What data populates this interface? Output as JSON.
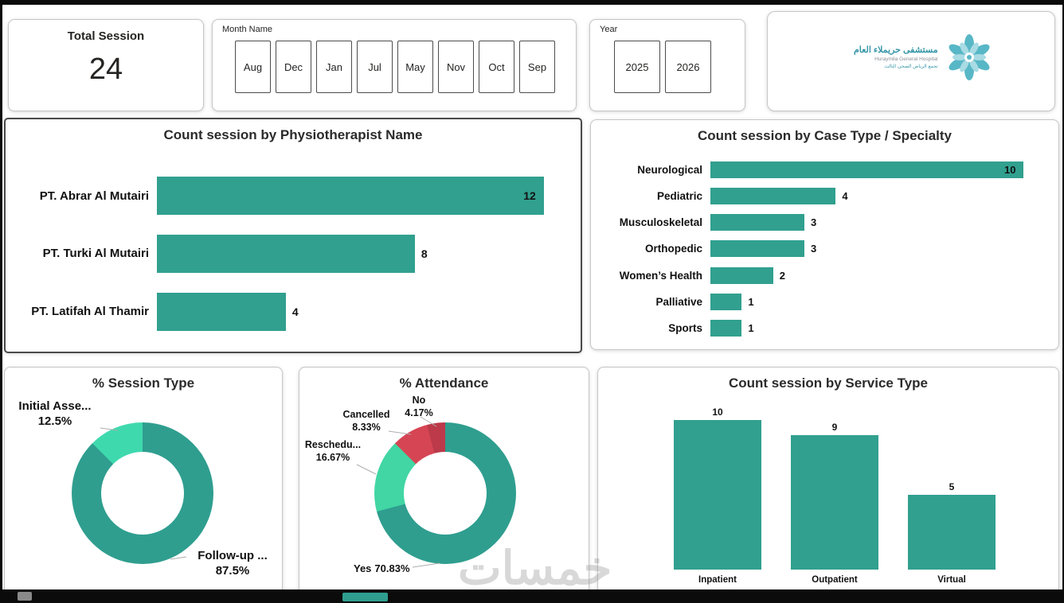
{
  "accent_color": "#31a08f",
  "kpi": {
    "title": "Total Session",
    "value": "24"
  },
  "month_slicer": {
    "label": "Month Name",
    "options": [
      "Aug",
      "Dec",
      "Jan",
      "Jul",
      "May",
      "Nov",
      "Oct",
      "Sep"
    ]
  },
  "year_slicer": {
    "label": "Year",
    "options": [
      "2025",
      "2026"
    ]
  },
  "logo": {
    "name_ar": "مستشفى حريملاء العام",
    "name_en": "Huraymila General Hospital",
    "subtitle_ar": "تجمع الرياض الصحي الثالث"
  },
  "watermark": "خمسات",
  "chart_data": [
    {
      "id": "physio",
      "type": "bar",
      "orientation": "horizontal",
      "title": "Count session by Physiotherapist Name",
      "categories": [
        "PT. Abrar Al Mutairi",
        "PT. Turki Al Mutairi",
        "PT. Latifah Al Thamir"
      ],
      "values": [
        12,
        8,
        4
      ],
      "xlim": [
        0,
        12.4
      ],
      "bar_color": "#31a08f"
    },
    {
      "id": "case",
      "type": "bar",
      "orientation": "horizontal",
      "title": "Count session by Case Type / Specialty",
      "categories": [
        "Neurological",
        "Pediatric",
        "Musculoskeletal",
        "Orthopedic",
        "Women’s Health",
        "Palliative",
        "Sports"
      ],
      "values": [
        10,
        4,
        3,
        3,
        2,
        1,
        1
      ],
      "xlim": [
        0,
        10.7
      ],
      "bar_color": "#31a08f"
    },
    {
      "id": "session_type",
      "type": "pie",
      "title": "% Session Type",
      "legend_position": "none",
      "slices": [
        {
          "label": "Follow-up ...",
          "pct": 87.5,
          "pct_label": "87.5%",
          "color": "#2f9e8f"
        },
        {
          "label": "Initial Asse...",
          "pct": 12.5,
          "pct_label": "12.5%",
          "color": "#3fd9ae"
        }
      ]
    },
    {
      "id": "attendance",
      "type": "pie",
      "title": "% Attendance",
      "legend_position": "none",
      "slices": [
        {
          "label": "Yes",
          "pct": 70.83,
          "pct_label": "70.83%",
          "color": "#2f9e8f"
        },
        {
          "label": "Reschedu...",
          "pct": 16.67,
          "pct_label": "16.67%",
          "color": "#41d6a3"
        },
        {
          "label": "Cancelled",
          "pct": 8.33,
          "pct_label": "8.33%",
          "color": "#d64554"
        },
        {
          "label": "No",
          "pct": 4.17,
          "pct_label": "4.17%",
          "color": "#bc3a49"
        }
      ]
    },
    {
      "id": "service",
      "type": "bar",
      "orientation": "vertical",
      "title": "Count session by Service Type",
      "categories": [
        "Inpatient",
        "Outpatient",
        "Virtual"
      ],
      "values": [
        10,
        9,
        5
      ],
      "ylim": [
        0,
        10.8
      ],
      "bar_color": "#31a08f"
    }
  ]
}
